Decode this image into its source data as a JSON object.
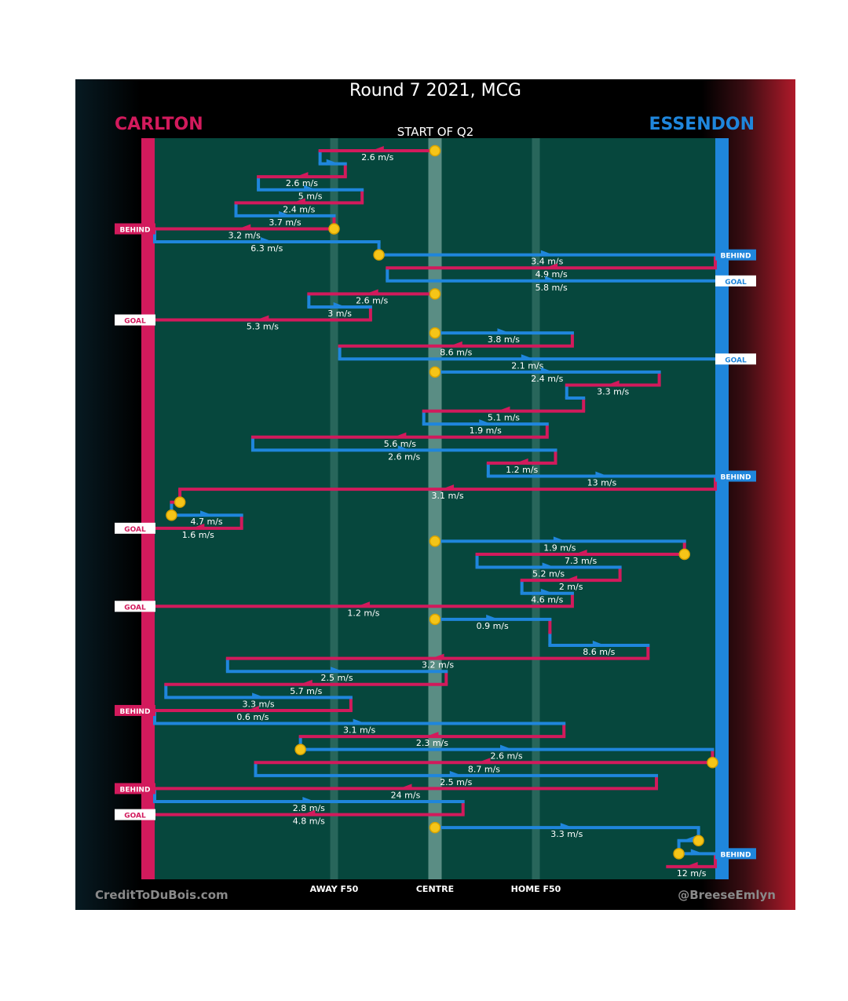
{
  "title": "Round 7 2021, MCG",
  "subtitle": "START OF Q2",
  "teams": {
    "left": "CARLTON",
    "right": "ESSENDON"
  },
  "credits": {
    "left": "CreditToDuBois.com",
    "right": "@BreeseEmlyn"
  },
  "colors": {
    "carlton": "#d21a5c",
    "essendon": "#1f86dc",
    "field": "#06473d",
    "ball": "#f5c518"
  },
  "chart_data": {
    "type": "line",
    "x_axis": {
      "range": [
        -100,
        100
      ],
      "tick_labels": [
        {
          "x": -36,
          "label": "AWAY F50"
        },
        {
          "x": 0,
          "label": "CENTRE"
        },
        {
          "x": 36,
          "label": "HOME F50"
        }
      ]
    },
    "rows": 57,
    "outcomes": [
      {
        "row": 7,
        "team": "carlton",
        "label": "BEHIND"
      },
      {
        "row": 9,
        "team": "essendon",
        "label": "BEHIND"
      },
      {
        "row": 11,
        "team": "essendon",
        "label": "GOAL"
      },
      {
        "row": 14,
        "team": "carlton",
        "label": "GOAL"
      },
      {
        "row": 17,
        "team": "essendon",
        "label": "GOAL"
      },
      {
        "row": 26,
        "team": "essendon",
        "label": "BEHIND"
      },
      {
        "row": 30,
        "team": "carlton",
        "label": "GOAL"
      },
      {
        "row": 36,
        "team": "carlton",
        "label": "GOAL"
      },
      {
        "row": 44,
        "team": "carlton",
        "label": "BEHIND"
      },
      {
        "row": 50,
        "team": "carlton",
        "label": "BEHIND"
      },
      {
        "row": 52,
        "team": "carlton",
        "label": "GOAL"
      },
      {
        "row": 55,
        "team": "essendon",
        "label": "BEHIND"
      }
    ],
    "segments": [
      {
        "row": 1,
        "team": "carlton",
        "x1": 0,
        "x2": -41,
        "speed": "2.6 m/s"
      },
      {
        "row": 2,
        "team": "essendon",
        "x1": -41,
        "x2": -32,
        "speed": ""
      },
      {
        "row": 3,
        "team": "carlton",
        "x1": -32,
        "x2": -63,
        "speed": "2.6 m/s"
      },
      {
        "row": 4,
        "team": "essendon",
        "x1": -63,
        "x2": -26,
        "speed": "5 m/s"
      },
      {
        "row": 5,
        "team": "carlton",
        "x1": -26,
        "x2": -71,
        "speed": "2.4 m/s"
      },
      {
        "row": 6,
        "team": "essendon",
        "x1": -71,
        "x2": -36,
        "speed": "3.7 m/s"
      },
      {
        "row": 7,
        "team": "carlton",
        "x1": -36,
        "x2": -100,
        "speed": "3.2 m/s"
      },
      {
        "row": 8,
        "team": "essendon",
        "x1": -100,
        "x2": -20,
        "speed": "6.3 m/s"
      },
      {
        "row": 9,
        "team": "essendon",
        "x1": -20,
        "x2": 100,
        "speed": "3.4 m/s"
      },
      {
        "row": 10,
        "team": "carlton",
        "x1": 100,
        "x2": -17,
        "speed": "4.9 m/s"
      },
      {
        "row": 11,
        "team": "essendon",
        "x1": -17,
        "x2": 100,
        "speed": "5.8 m/s"
      },
      {
        "row": 12,
        "team": "carlton",
        "x1": 0,
        "x2": -45,
        "speed": "2.6 m/s"
      },
      {
        "row": 13,
        "team": "essendon",
        "x1": -45,
        "x2": -23,
        "speed": "3 m/s"
      },
      {
        "row": 14,
        "team": "carlton",
        "x1": -23,
        "x2": -100,
        "speed": "5.3 m/s"
      },
      {
        "row": 15,
        "team": "essendon",
        "x1": 0,
        "x2": 49,
        "speed": "3.8 m/s"
      },
      {
        "row": 16,
        "team": "carlton",
        "x1": 49,
        "x2": -34,
        "speed": "8.6 m/s"
      },
      {
        "row": 17,
        "team": "essendon",
        "x1": -34,
        "x2": 100,
        "speed": "2.1 m/s"
      },
      {
        "row": 18,
        "team": "essendon",
        "x1": 0,
        "x2": 80,
        "speed": "2.4 m/s"
      },
      {
        "row": 19,
        "team": "carlton",
        "x1": 80,
        "x2": 47,
        "speed": "3.3 m/s"
      },
      {
        "row": 20,
        "team": "essendon",
        "x1": 47,
        "x2": 53,
        "speed": ""
      },
      {
        "row": 21,
        "team": "carlton",
        "x1": 53,
        "x2": -4,
        "speed": "5.1 m/s"
      },
      {
        "row": 22,
        "team": "essendon",
        "x1": -4,
        "x2": 40,
        "speed": "1.9 m/s"
      },
      {
        "row": 23,
        "team": "carlton",
        "x1": 40,
        "x2": -65,
        "speed": "5.6 m/s"
      },
      {
        "row": 24,
        "team": "essendon",
        "x1": -65,
        "x2": 43,
        "speed": "2.6 m/s"
      },
      {
        "row": 25,
        "team": "carlton",
        "x1": 43,
        "x2": 19,
        "speed": "1.2 m/s"
      },
      {
        "row": 26,
        "team": "essendon",
        "x1": 19,
        "x2": 100,
        "speed": "13 m/s"
      },
      {
        "row": 27,
        "team": "carlton",
        "x1": 100,
        "x2": -91,
        "speed": "3.1 m/s"
      },
      {
        "row": 28,
        "team": "carlton",
        "x1": -91,
        "x2": -94,
        "speed": ""
      },
      {
        "row": 29,
        "team": "essendon",
        "x1": -94,
        "x2": -69,
        "speed": "4.7 m/s"
      },
      {
        "row": 30,
        "team": "carlton",
        "x1": -69,
        "x2": -100,
        "speed": "1.6 m/s"
      },
      {
        "row": 31,
        "team": "essendon",
        "x1": 0,
        "x2": 89,
        "speed": "1.9 m/s"
      },
      {
        "row": 32,
        "team": "carlton",
        "x1": 89,
        "x2": 15,
        "speed": "7.3 m/s"
      },
      {
        "row": 33,
        "team": "essendon",
        "x1": 15,
        "x2": 66,
        "speed": "5.2 m/s"
      },
      {
        "row": 34,
        "team": "carlton",
        "x1": 66,
        "x2": 31,
        "speed": "2 m/s"
      },
      {
        "row": 35,
        "team": "essendon",
        "x1": 31,
        "x2": 49,
        "speed": "4.6 m/s"
      },
      {
        "row": 36,
        "team": "carlton",
        "x1": 49,
        "x2": -100,
        "speed": "1.2 m/s"
      },
      {
        "row": 37,
        "team": "essendon",
        "x1": 0,
        "x2": 41,
        "speed": "0.9 m/s"
      },
      {
        "row": 38,
        "team": "carlton",
        "x1": 41,
        "x2": 41,
        "speed": ""
      },
      {
        "row": 39,
        "team": "essendon",
        "x1": 41,
        "x2": 76,
        "speed": "8.6 m/s"
      },
      {
        "row": 40,
        "team": "carlton",
        "x1": 76,
        "x2": -74,
        "speed": "3.2 m/s"
      },
      {
        "row": 41,
        "team": "essendon",
        "x1": -74,
        "x2": 4,
        "speed": "2.5 m/s"
      },
      {
        "row": 42,
        "team": "carlton",
        "x1": 4,
        "x2": -96,
        "speed": "5.7 m/s"
      },
      {
        "row": 43,
        "team": "essendon",
        "x1": -96,
        "x2": -30,
        "speed": "3.3 m/s"
      },
      {
        "row": 44,
        "team": "carlton",
        "x1": -30,
        "x2": -100,
        "speed": "0.6 m/s"
      },
      {
        "row": 45,
        "team": "essendon",
        "x1": -100,
        "x2": 46,
        "speed": "3.1 m/s"
      },
      {
        "row": 46,
        "team": "carlton",
        "x1": 46,
        "x2": -48,
        "speed": "2.3 m/s"
      },
      {
        "row": 47,
        "team": "essendon",
        "x1": -48,
        "x2": 99,
        "speed": "2.6 m/s"
      },
      {
        "row": 48,
        "team": "carlton",
        "x1": 99,
        "x2": -64,
        "speed": "8.7 m/s"
      },
      {
        "row": 49,
        "team": "essendon",
        "x1": -64,
        "x2": 79,
        "speed": "2.5 m/s"
      },
      {
        "row": 50,
        "team": "carlton",
        "x1": 79,
        "x2": -100,
        "speed": "24 m/s"
      },
      {
        "row": 51,
        "team": "essendon",
        "x1": -100,
        "x2": 10,
        "speed": "2.8 m/s"
      },
      {
        "row": 52,
        "team": "carlton",
        "x1": 10,
        "x2": -100,
        "speed": "4.8 m/s"
      },
      {
        "row": 53,
        "team": "essendon",
        "x1": 0,
        "x2": 94,
        "speed": "3.3 m/s"
      },
      {
        "row": 54,
        "team": "essendon",
        "x1": 94,
        "x2": 87,
        "speed": ""
      },
      {
        "row": 55,
        "team": "essendon",
        "x1": 87,
        "x2": 100,
        "speed": ""
      },
      {
        "row": 56,
        "team": "carlton",
        "x1": 100,
        "x2": 83,
        "speed": "12 m/s"
      }
    ],
    "ball_ups": [
      {
        "row": 1,
        "x": 0
      },
      {
        "row": 7,
        "x": -36
      },
      {
        "row": 9,
        "x": -20
      },
      {
        "row": 12,
        "x": 0
      },
      {
        "row": 15,
        "x": 0
      },
      {
        "row": 18,
        "x": 0
      },
      {
        "row": 28,
        "x": -91
      },
      {
        "row": 29,
        "x": -94
      },
      {
        "row": 31,
        "x": 0
      },
      {
        "row": 32,
        "x": 89
      },
      {
        "row": 37,
        "x": 0
      },
      {
        "row": 47,
        "x": -48
      },
      {
        "row": 48,
        "x": 99
      },
      {
        "row": 53,
        "x": 0
      },
      {
        "row": 54,
        "x": 94
      },
      {
        "row": 55,
        "x": 87
      }
    ]
  }
}
